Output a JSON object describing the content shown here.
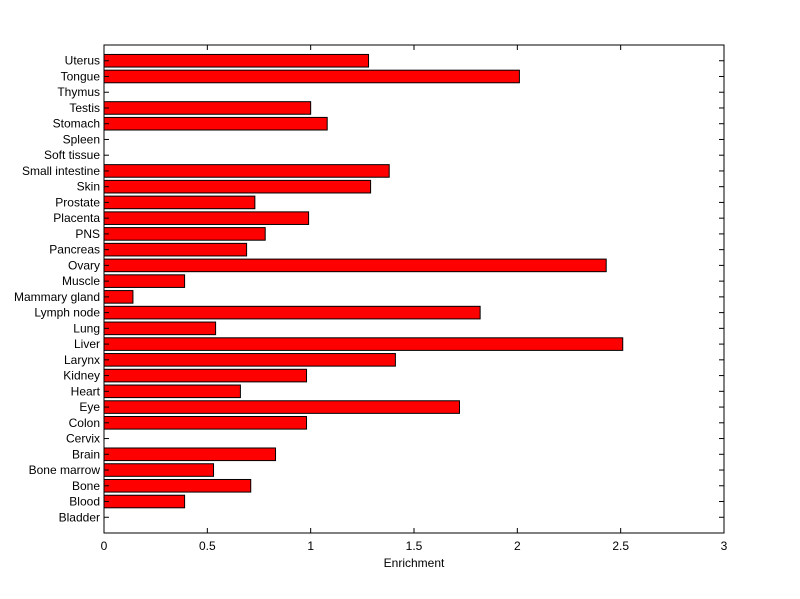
{
  "chart_data": {
    "type": "bar",
    "orientation": "horizontal",
    "categories": [
      "Uterus",
      "Tongue",
      "Thymus",
      "Testis",
      "Stomach",
      "Spleen",
      "Soft tissue",
      "Small intestine",
      "Skin",
      "Prostate",
      "Placenta",
      "PNS",
      "Pancreas",
      "Ovary",
      "Muscle",
      "Mammary gland",
      "Lymph node",
      "Lung",
      "Liver",
      "Larynx",
      "Kidney",
      "Heart",
      "Eye",
      "Colon",
      "Cervix",
      "Brain",
      "Bone marrow",
      "Bone",
      "Blood",
      "Bladder"
    ],
    "values": [
      1.28,
      2.01,
      0,
      1.0,
      1.08,
      0,
      0,
      1.38,
      1.29,
      0.73,
      0.99,
      0.78,
      0.69,
      2.43,
      0.39,
      0.14,
      1.82,
      0.54,
      2.51,
      1.41,
      0.98,
      0.66,
      1.72,
      0.98,
      0,
      0.83,
      0.53,
      0.71,
      0.39,
      0
    ],
    "xlabel": "Enrichment",
    "ylabel": "",
    "title": "",
    "xlim": [
      0,
      3
    ],
    "xticks": [
      "0",
      "0.5",
      "1",
      "1.5",
      "2",
      "2.5",
      "3"
    ],
    "bar_color": "#ff0000",
    "bar_edge_color": "#000000",
    "grid": false,
    "legend": "none"
  }
}
